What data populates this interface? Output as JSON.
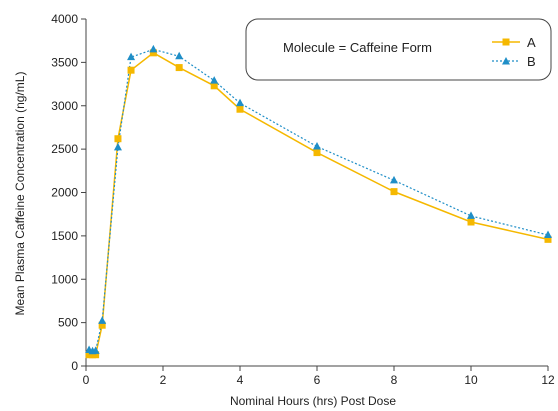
{
  "chart_data": {
    "type": "line",
    "xlabel": "Nominal Hours (hrs) Post Dose",
    "ylabel": "Mean Plasma Caffeine Concentration (ng/mL)",
    "xlim": [
      0,
      12
    ],
    "ylim": [
      0,
      4000
    ],
    "xticks": [
      0,
      2,
      4,
      6,
      8,
      10,
      12
    ],
    "yticks": [
      0,
      500,
      1000,
      1500,
      2000,
      2500,
      3000,
      3500,
      4000
    ],
    "grid": false,
    "legend": {
      "title": "Molecule = Caffeine Form",
      "placement": "top-right"
    },
    "series": [
      {
        "name": "A",
        "color": "#f5b800",
        "line_style": "solid",
        "marker": "square",
        "x": [
          0.08,
          0.17,
          0.25,
          0.42,
          0.83,
          1.17,
          1.75,
          2.42,
          3.33,
          4.0,
          6.0,
          8.0,
          10.0,
          12.0
        ],
        "y": [
          130,
          130,
          130,
          470,
          2620,
          3410,
          3610,
          3440,
          3230,
          2960,
          2460,
          2010,
          1660,
          1460
        ]
      },
      {
        "name": "B",
        "color": "#1f8ec7",
        "line_style": "dashed",
        "marker": "triangle",
        "x": [
          0.08,
          0.17,
          0.25,
          0.42,
          0.83,
          1.17,
          1.75,
          2.42,
          3.33,
          4.0,
          6.0,
          8.0,
          10.0,
          12.0
        ],
        "y": [
          185,
          170,
          175,
          520,
          2520,
          3560,
          3650,
          3570,
          3290,
          3030,
          2530,
          2140,
          1730,
          1510
        ]
      }
    ]
  }
}
